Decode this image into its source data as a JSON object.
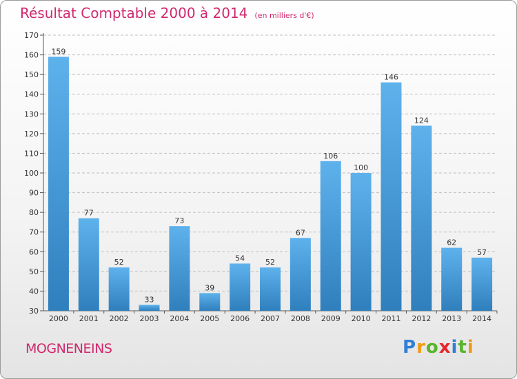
{
  "header": {
    "title": "Résultat Comptable 2000 à 2014",
    "unit": "(en milliers d'€)"
  },
  "commune": "MOGNENEINS",
  "logo": {
    "letters": [
      {
        "char": "P",
        "color": "#2f7fd6"
      },
      {
        "char": "r",
        "color": "#f09a16"
      },
      {
        "char": "o",
        "color": "#59b52b"
      },
      {
        "char": "x",
        "color": "#e8262a"
      },
      {
        "char": "i",
        "color": "#2f7fd6"
      },
      {
        "char": "t",
        "color": "#59b52b"
      },
      {
        "char": "i",
        "color": "#f09a16"
      }
    ]
  },
  "colors": {
    "title": "#d0296e",
    "bar_top": "#5eb2ec",
    "bar_bottom": "#2f7fbd",
    "grid": "#bfbfbf"
  },
  "chart_data": {
    "type": "bar",
    "title": "Résultat Comptable 2000 à 2014",
    "xlabel": "",
    "ylabel": "(en milliers d'€)",
    "categories": [
      "2000",
      "2001",
      "2002",
      "2003",
      "2004",
      "2005",
      "2006",
      "2007",
      "2008",
      "2009",
      "2010",
      "2011",
      "2012",
      "2013",
      "2014"
    ],
    "values": [
      159,
      77,
      52,
      33,
      73,
      39,
      54,
      52,
      67,
      106,
      100,
      146,
      124,
      62,
      57
    ],
    "ylim": [
      30,
      170
    ],
    "yticks": [
      30,
      40,
      50,
      60,
      70,
      80,
      90,
      100,
      110,
      120,
      130,
      140,
      150,
      160,
      170
    ],
    "grid": true
  }
}
